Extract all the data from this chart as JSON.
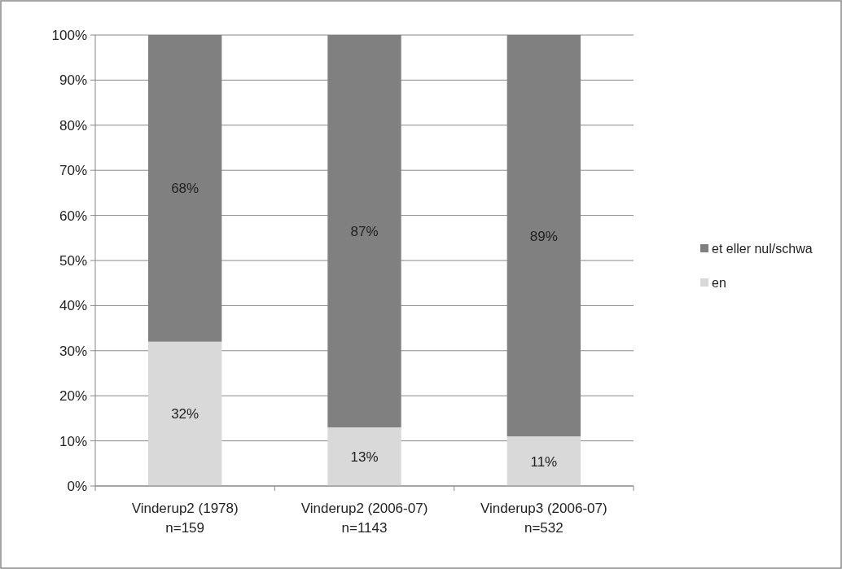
{
  "chart_data": {
    "type": "bar",
    "stacked": true,
    "categories": [
      "Vinderup2 (1978)\nn=159",
      "Vinderup2 (2006-07)\nn=1143",
      "Vinderup3 (2006-07)\nn=532"
    ],
    "series": [
      {
        "name": "en",
        "color": "#d9d9d9",
        "values": [
          32,
          13,
          11
        ],
        "value_labels": [
          "32%",
          "13%",
          "11%"
        ]
      },
      {
        "name": "et eller nul/schwa",
        "color": "#808080",
        "values": [
          68,
          87,
          89
        ],
        "value_labels": [
          "68%",
          "87%",
          "89%"
        ]
      }
    ],
    "ylim": [
      0,
      100
    ],
    "yticks": [
      {
        "value": 0,
        "label": "0%"
      },
      {
        "value": 10,
        "label": "10%"
      },
      {
        "value": 20,
        "label": "20%"
      },
      {
        "value": 30,
        "label": "30%"
      },
      {
        "value": 40,
        "label": "40%"
      },
      {
        "value": 50,
        "label": "50%"
      },
      {
        "value": 60,
        "label": "60%"
      },
      {
        "value": 70,
        "label": "70%"
      },
      {
        "value": 80,
        "label": "80%"
      },
      {
        "value": 90,
        "label": "90%"
      },
      {
        "value": 100,
        "label": "100%"
      }
    ],
    "grid": "y",
    "legend": "right"
  }
}
